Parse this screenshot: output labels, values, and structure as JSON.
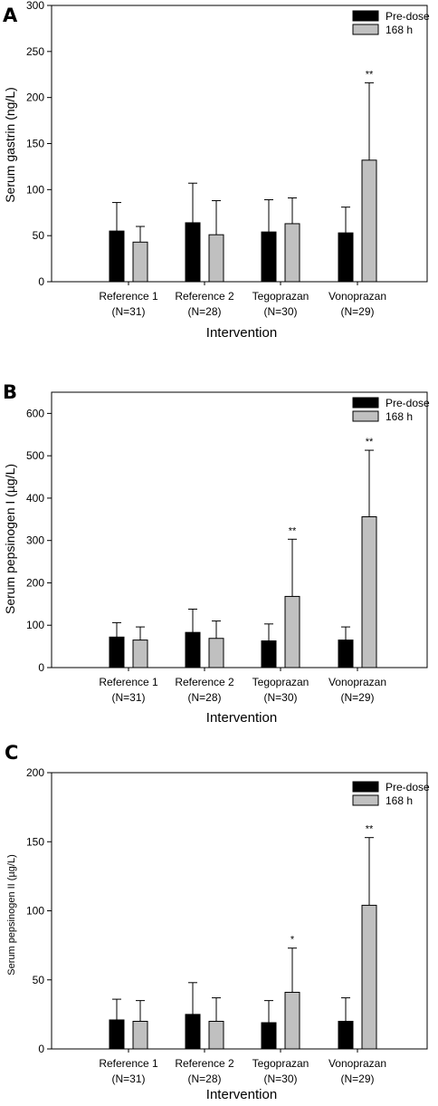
{
  "colors": {
    "pre_dose": "#000000",
    "h168": "#c0c0c0"
  },
  "chart_data": [
    {
      "panel_label": "A",
      "type": "bar",
      "ylabel": "Serum gastrin (ng/L)",
      "xlabel": "Intervention",
      "ylim": [
        0,
        300
      ],
      "yticks": [
        0,
        50,
        100,
        150,
        200,
        250,
        300
      ],
      "categories": [
        "Reference 1",
        "Reference 2",
        "Tegoprazan",
        "Vonoprazan"
      ],
      "category_n": [
        "(N=31)",
        "(N=28)",
        "(N=30)",
        "(N=29)"
      ],
      "series": [
        {
          "name": "Pre-dose",
          "values": [
            55,
            64,
            54,
            53
          ],
          "error": [
            31,
            43,
            35,
            28
          ]
        },
        {
          "name": "168 h",
          "values": [
            43,
            51,
            63,
            132
          ],
          "error": [
            17,
            37,
            28,
            84
          ]
        }
      ],
      "annotations": [
        {
          "category": 3,
          "series": 1,
          "text": "**"
        }
      ],
      "legend": "top-right"
    },
    {
      "panel_label": "B",
      "type": "bar",
      "ylabel": "Serum pepsinogen I  (µg/L)",
      "xlabel": "Intervention",
      "ylim": [
        0,
        650
      ],
      "yticks": [
        0,
        100,
        200,
        300,
        400,
        500,
        600
      ],
      "categories": [
        "Reference 1",
        "Reference 2",
        "Tegoprazan",
        "Vonoprazan"
      ],
      "category_n": [
        "(N=31)",
        "(N=28)",
        "(N=30)",
        "(N=29)"
      ],
      "series": [
        {
          "name": "Pre-dose",
          "values": [
            72,
            83,
            63,
            65
          ],
          "error": [
            34,
            55,
            40,
            31
          ]
        },
        {
          "name": "168 h",
          "values": [
            65,
            69,
            168,
            356
          ],
          "error": [
            31,
            41,
            135,
            157
          ]
        }
      ],
      "annotations": [
        {
          "category": 2,
          "series": 1,
          "text": "**"
        },
        {
          "category": 3,
          "series": 1,
          "text": "**"
        }
      ],
      "legend": "top-right"
    },
    {
      "panel_label": "C",
      "type": "bar",
      "ylabel": "Serum pepsinogen II (µg/L)",
      "xlabel": "Intervention",
      "ylim": [
        0,
        200
      ],
      "yticks": [
        0,
        50,
        100,
        150,
        200
      ],
      "categories": [
        "Reference 1",
        "Reference 2",
        "Tegoprazan",
        "Vonoprazan"
      ],
      "category_n": [
        "(N=31)",
        "(N=28)",
        "(N=30)",
        "(N=29)"
      ],
      "series": [
        {
          "name": "Pre-dose",
          "values": [
            21,
            25,
            19,
            20
          ],
          "error": [
            15,
            23,
            16,
            17
          ]
        },
        {
          "name": "168 h",
          "values": [
            20,
            20,
            41,
            104
          ],
          "error": [
            15,
            17,
            32,
            49
          ]
        }
      ],
      "annotations": [
        {
          "category": 2,
          "series": 1,
          "text": "*"
        },
        {
          "category": 3,
          "series": 1,
          "text": "**"
        }
      ],
      "legend": "top-right"
    }
  ]
}
